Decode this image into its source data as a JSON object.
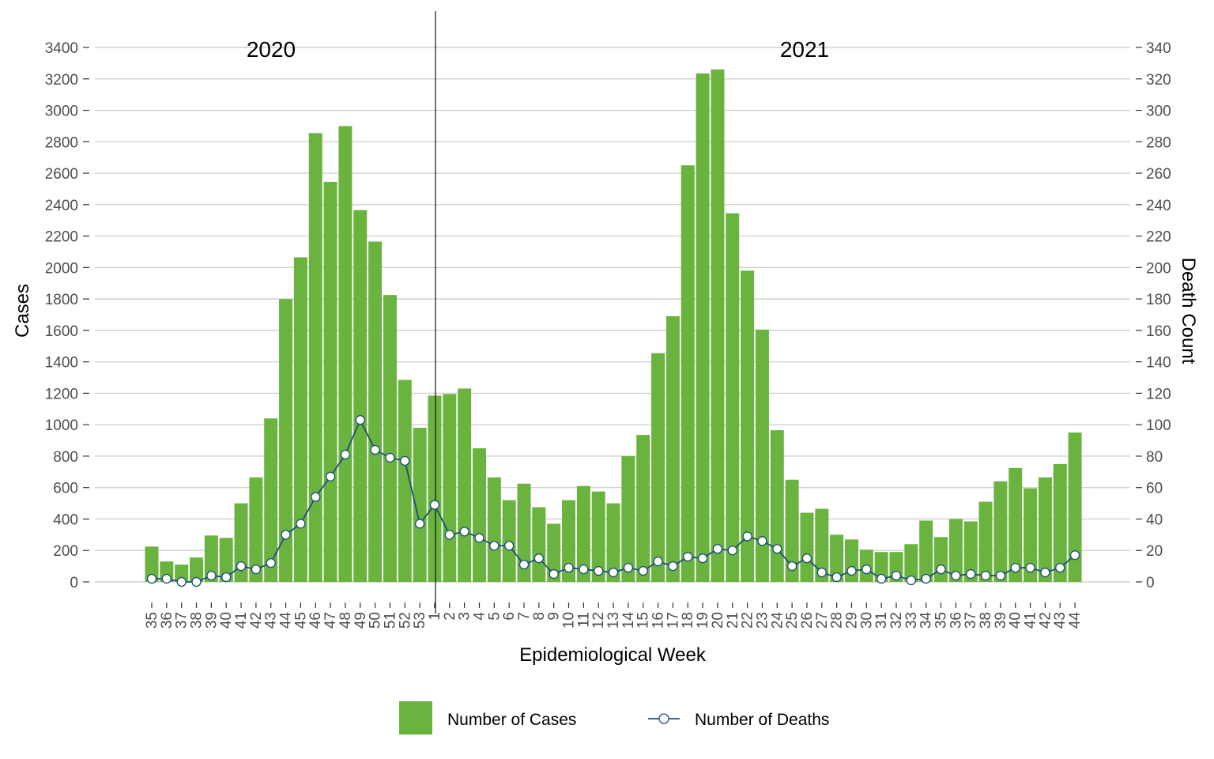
{
  "chart_data": {
    "type": "bar",
    "xlabel": "Epidemiological Week",
    "ylabel": "Cases",
    "ylabel_right": "Death Count",
    "ylim": [
      0,
      3400
    ],
    "ylim_right": [
      0,
      340
    ],
    "y_ticks": [
      "0",
      "200",
      "400",
      "600",
      "800",
      "1000",
      "1200",
      "1400",
      "1600",
      "1800",
      "2000",
      "2200",
      "2400",
      "2600",
      "2800",
      "3000",
      "3200",
      "3400"
    ],
    "y_ticks_right": [
      "0",
      "20",
      "40",
      "60",
      "80",
      "100",
      "120",
      "140",
      "160",
      "180",
      "200",
      "220",
      "240",
      "260",
      "280",
      "300",
      "320",
      "340"
    ],
    "grid": true,
    "legend_position": "bottom",
    "year_labels": [
      "2020",
      "2021"
    ],
    "colors": {
      "cases": "#6ab33e",
      "deaths_line": "#1f4e79",
      "marker_fill": "#ffffff"
    },
    "categories": [
      "35",
      "36",
      "37",
      "38",
      "39",
      "40",
      "41",
      "42",
      "43",
      "44",
      "45",
      "46",
      "47",
      "48",
      "49",
      "50",
      "51",
      "52",
      "53",
      "1",
      "2",
      "3",
      "4",
      "5",
      "6",
      "7",
      "8",
      "9",
      "10",
      "11",
      "12",
      "13",
      "14",
      "15",
      "16",
      "17",
      "18",
      "19",
      "20",
      "21",
      "22",
      "23",
      "24",
      "25",
      "26",
      "27",
      "28",
      "29",
      "30",
      "31",
      "32",
      "33",
      "34",
      "35",
      "36",
      "37",
      "38",
      "39",
      "40",
      "41",
      "42",
      "43",
      "44"
    ],
    "series": [
      {
        "name": "Number of Cases",
        "type": "bar",
        "axis": "left",
        "values": [
          225,
          130,
          110,
          155,
          295,
          280,
          500,
          665,
          1040,
          1800,
          2065,
          2855,
          2545,
          2900,
          2365,
          2165,
          1825,
          1285,
          980,
          1185,
          1195,
          1230,
          850,
          665,
          520,
          625,
          475,
          370,
          520,
          610,
          575,
          500,
          800,
          935,
          1455,
          1690,
          2650,
          3235,
          3260,
          2345,
          1980,
          1605,
          965,
          650,
          440,
          465,
          300,
          270,
          205,
          190,
          190,
          240,
          390,
          285,
          400,
          385,
          510,
          640,
          725,
          595,
          665,
          750,
          950
        ]
      },
      {
        "name": "Number of Deaths",
        "type": "line",
        "axis": "right",
        "values": [
          2,
          2,
          0,
          0,
          4,
          3,
          10,
          8,
          12,
          30,
          37,
          54,
          67,
          81,
          103,
          84,
          79,
          77,
          37,
          49,
          30,
          32,
          28,
          23,
          23,
          11,
          15,
          5,
          9,
          8,
          7,
          6,
          9,
          7,
          13,
          10,
          16,
          15,
          21,
          20,
          29,
          26,
          21,
          10,
          15,
          6,
          3,
          7,
          8,
          2,
          4,
          1,
          2,
          8,
          4,
          5,
          4,
          4,
          9,
          9,
          6,
          9,
          17
        ]
      }
    ]
  }
}
